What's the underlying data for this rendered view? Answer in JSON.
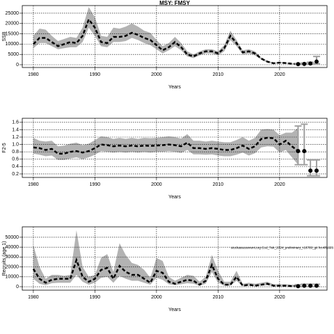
{
  "chart_data": [
    {
      "type": "line",
      "title": "MSY: FMSY",
      "xlabel": "Years",
      "ylabel": "SSB",
      "x": [
        1980,
        1981,
        1982,
        1983,
        1984,
        1985,
        1986,
        1987,
        1988,
        1989,
        1990,
        1991,
        1992,
        1993,
        1994,
        1995,
        1996,
        1997,
        1998,
        1999,
        2000,
        2001,
        2002,
        2003,
        2004,
        2005,
        2006,
        2007,
        2008,
        2009,
        2010,
        2011,
        2012,
        2013,
        2014,
        2015,
        2016,
        2017,
        2018,
        2019,
        2020,
        2021,
        2022,
        2023
      ],
      "values": [
        10000,
        13000,
        13000,
        11000,
        9000,
        10000,
        11000,
        10500,
        14000,
        22000,
        18000,
        11000,
        10500,
        13500,
        13500,
        14000,
        15500,
        14500,
        13000,
        12000,
        9500,
        7000,
        8500,
        11000,
        8500,
        5000,
        4000,
        5500,
        6500,
        6500,
        5500,
        8000,
        14000,
        10500,
        6000,
        6500,
        5500,
        3000,
        1500,
        700,
        1000,
        800,
        500,
        300
      ],
      "upper": [
        14000,
        17500,
        17000,
        14000,
        11500,
        12500,
        13500,
        13000,
        18000,
        28000,
        23000,
        14000,
        13500,
        18000,
        17500,
        18500,
        20000,
        18500,
        16500,
        15500,
        12000,
        9000,
        10500,
        13500,
        10500,
        6500,
        5000,
        6500,
        7500,
        7500,
        6500,
        9500,
        16500,
        12000,
        7000,
        7500,
        6500,
        3500,
        2000,
        1000,
        1300,
        1100,
        800,
        600
      ],
      "lower": [
        8000,
        10500,
        10500,
        9000,
        7500,
        8000,
        8500,
        8500,
        11000,
        18000,
        14000,
        9000,
        8500,
        11000,
        11000,
        11500,
        13000,
        12000,
        10500,
        9500,
        7500,
        5500,
        7000,
        9000,
        7000,
        4000,
        3200,
        4500,
        5500,
        5500,
        4500,
        6500,
        12000,
        9000,
        5000,
        5500,
        4500,
        2500,
        1000,
        400,
        700,
        500,
        250,
        100
      ],
      "proj_x": [
        2023,
        2024,
        2025,
        2026
      ],
      "proj_values": [
        300,
        400,
        600,
        1500
      ],
      "proj_lower": [
        100,
        150,
        200,
        500
      ],
      "proj_upper": [
        600,
        800,
        1200,
        4000
      ],
      "xlim": [
        1978.2,
        2027.7
      ],
      "xticks": [
        1980,
        1990,
        2000,
        2010,
        2020
      ],
      "ylim": [
        -1350,
        28700
      ],
      "yticks": [
        0,
        5000,
        10000,
        15000,
        20000,
        25000
      ],
      "grid": true
    },
    {
      "type": "line",
      "xlabel": "Years",
      "ylabel": "F2-5",
      "x": [
        1980,
        1981,
        1982,
        1983,
        1984,
        1985,
        1986,
        1987,
        1988,
        1989,
        1990,
        1991,
        1992,
        1993,
        1994,
        1995,
        1996,
        1997,
        1998,
        1999,
        2000,
        2001,
        2002,
        2003,
        2004,
        2005,
        2006,
        2007,
        2008,
        2009,
        2010,
        2011,
        2012,
        2013,
        2014,
        2015,
        2016,
        2017,
        2018,
        2019,
        2020,
        2021,
        2022,
        2023
      ],
      "values": [
        0.92,
        0.9,
        0.85,
        0.88,
        0.75,
        0.75,
        0.8,
        0.82,
        0.78,
        0.82,
        0.9,
        1.0,
        0.98,
        0.95,
        0.97,
        0.95,
        0.97,
        0.95,
        0.97,
        0.96,
        0.97,
        0.98,
        1.0,
        0.98,
        0.95,
        1.05,
        0.9,
        0.9,
        0.88,
        0.9,
        0.88,
        0.85,
        0.85,
        0.9,
        0.97,
        0.88,
        0.95,
        1.15,
        1.18,
        1.17,
        1.0,
        1.1,
        0.95,
        0.82
      ],
      "upper": [
        1.18,
        1.1,
        1.08,
        1.1,
        0.95,
        0.97,
        1.02,
        1.05,
        0.98,
        1.02,
        1.12,
        1.22,
        1.2,
        1.15,
        1.18,
        1.15,
        1.18,
        1.15,
        1.18,
        1.17,
        1.18,
        1.2,
        1.22,
        1.2,
        1.16,
        1.28,
        1.1,
        1.1,
        1.08,
        1.1,
        1.08,
        1.06,
        1.06,
        1.12,
        1.2,
        1.1,
        1.18,
        1.4,
        1.42,
        1.4,
        1.25,
        1.32,
        1.32,
        1.45
      ],
      "lower": [
        0.75,
        0.72,
        0.68,
        0.7,
        0.58,
        0.58,
        0.62,
        0.65,
        0.6,
        0.65,
        0.72,
        0.82,
        0.8,
        0.78,
        0.8,
        0.78,
        0.8,
        0.78,
        0.8,
        0.78,
        0.8,
        0.8,
        0.82,
        0.8,
        0.77,
        0.85,
        0.73,
        0.73,
        0.72,
        0.73,
        0.7,
        0.68,
        0.68,
        0.72,
        0.78,
        0.7,
        0.76,
        0.92,
        0.95,
        0.94,
        0.78,
        0.85,
        0.65,
        0.45
      ],
      "proj_x": [
        2023,
        2024,
        2025,
        2026
      ],
      "proj_values": [
        0.82,
        0.82,
        0.29,
        0.29
      ],
      "proj_lower": [
        0.45,
        0.45,
        0.15,
        0.15
      ],
      "proj_upper": [
        1.5,
        1.55,
        0.58,
        0.58
      ],
      "xlim": [
        1978.2,
        2027.7
      ],
      "xticks": [
        1980,
        1990,
        2000,
        2010,
        2020
      ],
      "ylim": [
        0.105,
        1.71
      ],
      "yticks": [
        0.2,
        0.4,
        0.6,
        0.8,
        {
          "value": 1,
          "label": "1.0"
        },
        1.2,
        1.4,
        1.6
      ],
      "grid": true
    },
    {
      "type": "line",
      "xlabel": "Years",
      "ylabel": "Recruits (age 1)",
      "annotation": "stockassessment.org Cod_7ek_2024_preliminary_r16760_git fcc4f8d6f8",
      "x": [
        1980,
        1981,
        1982,
        1983,
        1984,
        1985,
        1986,
        1987,
        1988,
        1989,
        1990,
        1991,
        1992,
        1993,
        1994,
        1995,
        1996,
        1997,
        1998,
        1999,
        2000,
        2001,
        2002,
        2003,
        2004,
        2005,
        2006,
        2007,
        2008,
        2009,
        2010,
        2011,
        2012,
        2013,
        2014,
        2015,
        2016,
        2017,
        2018,
        2019,
        2020,
        2021,
        2022,
        2023
      ],
      "values": [
        18000,
        8000,
        4000,
        7000,
        8000,
        8000,
        8000,
        27000,
        10000,
        5000,
        8000,
        17000,
        19000,
        8000,
        21000,
        15000,
        12000,
        12000,
        8000,
        4000,
        16000,
        14000,
        5000,
        3000,
        5000,
        7000,
        6000,
        2000,
        6000,
        22000,
        8000,
        2000,
        2000,
        10000,
        1000,
        2000,
        1000,
        2000,
        3000,
        1000,
        1000,
        1000,
        500,
        500
      ],
      "upper": [
        42000,
        20000,
        8000,
        12000,
        12000,
        11000,
        12000,
        57000,
        20000,
        10000,
        12000,
        29000,
        33000,
        15000,
        44000,
        32000,
        24000,
        22000,
        17000,
        9000,
        29000,
        26000,
        10000,
        6000,
        9000,
        12000,
        11000,
        5000,
        10000,
        32000,
        16000,
        5000,
        5000,
        16000,
        3000,
        4000,
        3000,
        4000,
        5000,
        2500,
        2500,
        2500,
        2000,
        2000
      ],
      "lower": [
        8000,
        3000,
        1500,
        3500,
        4000,
        4000,
        4000,
        12000,
        5000,
        2000,
        4000,
        9000,
        10000,
        4000,
        11000,
        8000,
        6000,
        6000,
        4000,
        2000,
        9000,
        7000,
        2500,
        1500,
        2500,
        3500,
        3000,
        1000,
        3000,
        15000,
        4000,
        1000,
        1000,
        6000,
        500,
        1000,
        500,
        1000,
        1500,
        400,
        400,
        400,
        200,
        100
      ],
      "proj_x": [
        2023,
        2024,
        2025,
        2026
      ],
      "proj_values": [
        500,
        1000,
        1000,
        1000
      ],
      "proj_lower": [
        100,
        200,
        200,
        200
      ],
      "proj_upper": [
        2000,
        2500,
        2500,
        2500
      ],
      "xlim": [
        1978.2,
        2027.7
      ],
      "xticks": [
        1980,
        1990,
        2000,
        2010,
        2020
      ],
      "ylim": [
        -3500,
        60500
      ],
      "yticks": [
        0,
        10000,
        20000,
        30000,
        40000,
        50000
      ],
      "grid": true
    }
  ]
}
